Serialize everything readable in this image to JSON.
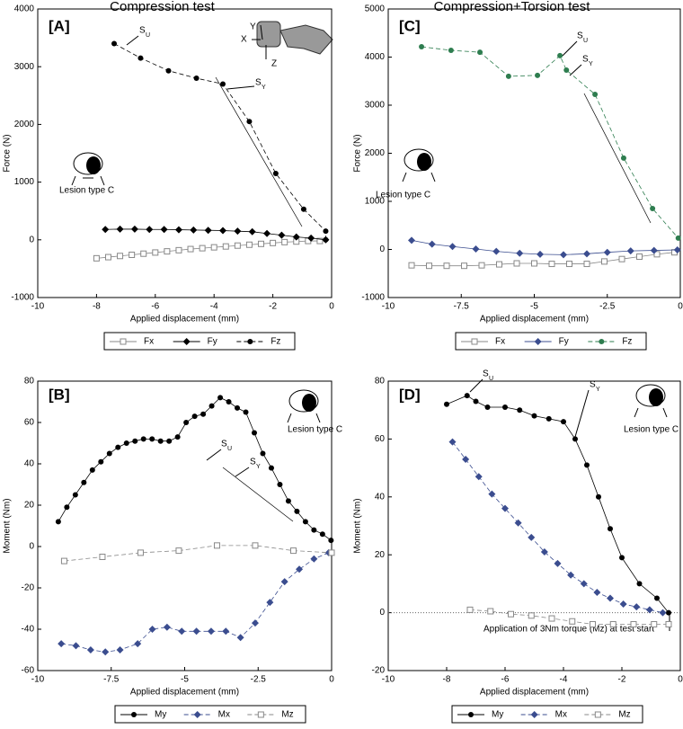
{
  "chart_data": [
    {
      "type": "line",
      "title": "Compression test",
      "xlabel": "Applied displacement (mm)",
      "ylabel": "Force (N)",
      "xlim": [
        -10,
        0
      ],
      "xticks": [
        -10,
        -8,
        -6,
        -4,
        -2,
        0
      ],
      "ylim": [
        -1000,
        4000
      ],
      "yticks": [
        -1000,
        0,
        1000,
        2000,
        3000,
        4000
      ],
      "annotations": [
        "[A]",
        "S",
        "U",
        "S",
        "Y",
        "Lesion type C",
        "X",
        "Y",
        "Z"
      ],
      "series": [
        {
          "name": "Fx",
          "color": "#888888",
          "marker": "square-open",
          "line_style": "solid",
          "x": [
            -8,
            -7.6,
            -7.2,
            -6.8,
            -6.4,
            -6,
            -5.6,
            -5.2,
            -4.8,
            -4.4,
            -4,
            -3.6,
            -3.2,
            -2.8,
            -2.4,
            -2,
            -1.6,
            -1.2,
            -0.8,
            -0.4
          ],
          "values": [
            -320,
            -300,
            -280,
            -260,
            -240,
            -220,
            -200,
            -180,
            -160,
            -145,
            -130,
            -115,
            -100,
            -85,
            -70,
            -55,
            -40,
            -30,
            -20,
            -20
          ]
        },
        {
          "name": "Fy",
          "color": "#000000",
          "marker": "diamond",
          "line_style": "solid",
          "x": [
            -7.7,
            -7.2,
            -6.7,
            -6.2,
            -5.7,
            -5.2,
            -4.7,
            -4.2,
            -3.7,
            -3.2,
            -2.7,
            -2.2,
            -1.7,
            -1.2,
            -0.7,
            -0.2
          ],
          "values": [
            180,
            185,
            185,
            180,
            180,
            175,
            170,
            165,
            160,
            150,
            140,
            110,
            80,
            50,
            30,
            0
          ]
        },
        {
          "name": "Fz",
          "color": "#000000",
          "marker": "circle",
          "line_style": "dashed",
          "x": [
            -7.4,
            -6.5,
            -5.55,
            -4.6,
            -3.7,
            -2.8,
            -1.9,
            -0.95,
            -0.2,
            -0.2
          ],
          "values": [
            3400,
            3150,
            2930,
            2800,
            2700,
            2050,
            1150,
            530,
            150,
            0
          ]
        }
      ]
    },
    {
      "type": "line",
      "title": "Compression+Torsion test",
      "xlabel": "Applied displacement (mm)",
      "ylabel": "Force (N)",
      "xlim": [
        -10,
        0
      ],
      "xticks": [
        -10,
        -7.5,
        -5,
        -2.5,
        0
      ],
      "ylim": [
        -1000,
        5000
      ],
      "yticks": [
        -1000,
        0,
        1000,
        2000,
        3000,
        4000,
        5000
      ],
      "annotations": [
        "[C]",
        "S",
        "U",
        "S",
        "Y",
        "Lesion type C"
      ],
      "series": [
        {
          "name": "Fx",
          "color": "#888888",
          "marker": "square-open",
          "line_style": "solid",
          "x": [
            -9.2,
            -8.6,
            -8,
            -7.4,
            -6.8,
            -6.2,
            -5.6,
            -5,
            -4.4,
            -3.8,
            -3.2,
            -2.6,
            -2,
            -1.4,
            -0.8,
            -0.2
          ],
          "values": [
            -330,
            -340,
            -340,
            -340,
            -330,
            -310,
            -290,
            -290,
            -300,
            -300,
            -300,
            -250,
            -200,
            -150,
            -100,
            -60
          ]
        },
        {
          "name": "Fy",
          "color": "#3b4d8f",
          "marker": "diamond",
          "line_style": "solid",
          "x": [
            -9.2,
            -8.5,
            -7.8,
            -7,
            -6.3,
            -5.5,
            -4.8,
            -4,
            -3.2,
            -2.5,
            -1.7,
            -0.9,
            -0.1
          ],
          "values": [
            190,
            110,
            60,
            10,
            -40,
            -80,
            -100,
            -110,
            -90,
            -60,
            -30,
            -20,
            -10
          ]
        },
        {
          "name": "Fz",
          "color": "#2e7d4f",
          "marker": "circle",
          "line_style": "dashed",
          "x": [
            -8.86,
            -7.85,
            -6.86,
            -5.88,
            -4.89,
            -4.12,
            -3.9,
            -2.92,
            -1.94,
            -0.95,
            -0.07
          ],
          "values": [
            4215,
            4140,
            4100,
            3600,
            3620,
            4030,
            3730,
            3225,
            1900,
            850,
            235
          ]
        }
      ]
    },
    {
      "type": "line",
      "xlabel": "Applied displacement (mm)",
      "ylabel": "Moment (Nm)",
      "xlim": [
        -10,
        0
      ],
      "xticks": [
        -10,
        -7.5,
        -5,
        -2.5,
        0
      ],
      "ylim": [
        -60,
        80
      ],
      "yticks": [
        -60,
        -40,
        -20,
        0,
        20,
        40,
        60,
        80
      ],
      "annotations": [
        "[B]",
        "S",
        "U",
        "S",
        "Y",
        "Lesion type C"
      ],
      "series": [
        {
          "name": "My",
          "color": "#000000",
          "marker": "circle",
          "line_style": "solid",
          "x": [
            -9.3,
            -9.01,
            -8.72,
            -8.43,
            -8.14,
            -7.85,
            -7.56,
            -7.27,
            -6.98,
            -6.69,
            -6.4,
            -6.11,
            -5.82,
            -5.53,
            -5.24,
            -4.95,
            -4.66,
            -4.37,
            -4.08,
            -3.79,
            -3.5,
            -3.21,
            -2.92,
            -2.63,
            -2.34,
            -2.05,
            -1.76,
            -1.47,
            -1.18,
            -0.89,
            -0.6,
            -0.31,
            -0.02
          ],
          "values": [
            12,
            19,
            25,
            31,
            37,
            41,
            45,
            48,
            50,
            51,
            52,
            52,
            51,
            51,
            53,
            60,
            63,
            64,
            68,
            72,
            70,
            67,
            65,
            55,
            45,
            38,
            30,
            22,
            17,
            12,
            8,
            6,
            3
          ]
        },
        {
          "name": "Mx",
          "color": "#3b4d8f",
          "marker": "diamond",
          "line_style": "dashed",
          "x": [
            -9.2,
            -8.7,
            -8.2,
            -7.7,
            -7.2,
            -6.6,
            -6.1,
            -5.6,
            -5.1,
            -4.6,
            -4.1,
            -3.6,
            -3.1,
            -2.6,
            -2.1,
            -1.6,
            -1.1,
            -0.6,
            -0.1
          ],
          "values": [
            -47,
            -48,
            -50,
            -51,
            -50,
            -47,
            -40,
            -39,
            -41,
            -41,
            -41,
            -41,
            -44,
            -37,
            -27,
            -17,
            -11,
            -6,
            -3
          ]
        },
        {
          "name": "Mz",
          "color": "#888888",
          "marker": "square-open",
          "line_style": "dashed",
          "x": [
            -9.1,
            -7.8,
            -6.5,
            -5.2,
            -3.9,
            -2.6,
            -1.3,
            0
          ],
          "values": [
            -7,
            -5,
            -3,
            -2,
            0.5,
            0.5,
            -2,
            -3
          ]
        }
      ]
    },
    {
      "type": "line",
      "xlabel": "Applied displacement (mm)",
      "ylabel": "Moment (Nm)",
      "xlim": [
        -10,
        0
      ],
      "xticks": [
        -10,
        -8,
        -6,
        -4,
        -2,
        0
      ],
      "ylim": [
        -20,
        80
      ],
      "yticks": [
        -20,
        0,
        20,
        40,
        60,
        80
      ],
      "zero_line": true,
      "annotations": [
        "[D]",
        "S",
        "U",
        "S",
        "Y",
        "Lesion type C",
        "Application of 3Nm torque (Mz) at test start"
      ],
      "series": [
        {
          "name": "My",
          "color": "#000000",
          "marker": "circle",
          "line_style": "solid",
          "x": [
            -8,
            -7.3,
            -7,
            -6.6,
            -6,
            -5.5,
            -5,
            -4.5,
            -4,
            -3.6,
            -3.2,
            -2.8,
            -2.4,
            -2,
            -1.4,
            -0.8,
            -0.4
          ],
          "values": [
            72,
            75,
            73,
            71,
            71,
            70,
            68,
            67,
            66,
            60,
            51,
            40,
            29,
            19,
            10,
            5,
            0
          ]
        },
        {
          "name": "Mx",
          "color": "#3b4d8f",
          "marker": "diamond",
          "line_style": "dashed",
          "x": [
            -7.8,
            -7.35,
            -6.9,
            -6.45,
            -6,
            -5.55,
            -5.1,
            -4.65,
            -4.2,
            -3.75,
            -3.3,
            -2.85,
            -2.4,
            -1.95,
            -1.5,
            -1.05,
            -0.6
          ],
          "values": [
            59,
            53,
            47,
            41,
            36,
            31,
            26,
            21,
            17,
            13,
            10,
            7,
            5,
            3,
            2,
            1,
            0
          ]
        },
        {
          "name": "Mz",
          "color": "#888888",
          "marker": "square-open",
          "line_style": "dashed",
          "x": [
            -7.2,
            -6.5,
            -5.8,
            -5.1,
            -4.4,
            -3.7,
            -3,
            -2.3,
            -1.6,
            -0.9,
            -0.4
          ],
          "values": [
            1,
            0.5,
            -0.5,
            -1,
            -2,
            -3,
            -4,
            -4,
            -4,
            -4,
            -4
          ]
        }
      ]
    }
  ]
}
